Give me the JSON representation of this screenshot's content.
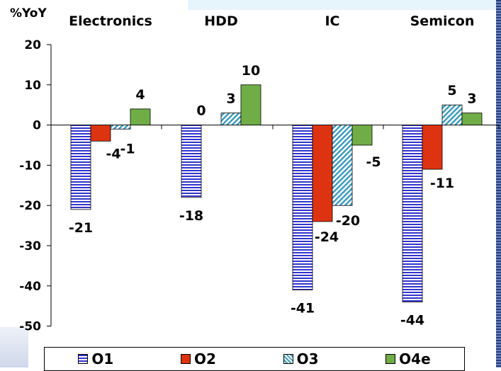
{
  "chart_data": {
    "type": "bar",
    "ylabel": "%YoY",
    "categories": [
      "Electronics",
      "HDD",
      "IC",
      "Semicon"
    ],
    "ylim": [
      -50,
      20
    ],
    "yticks": [
      20,
      10,
      0,
      -10,
      -20,
      -30,
      -40,
      -50
    ],
    "series": [
      {
        "name": "O1",
        "values": [
          -21,
          -18,
          -41,
          -44
        ],
        "pattern": "horizontal-stripes",
        "color": "#3333cc"
      },
      {
        "name": "O2",
        "values": [
          -4,
          null,
          -24,
          -11
        ],
        "pattern": "solid",
        "color": "#dd3311"
      },
      {
        "name": "O3",
        "values": [
          -1,
          3,
          -20,
          5
        ],
        "pattern": "diagonal-stripes",
        "color": "#3b9bbd"
      },
      {
        "name": "O4e",
        "values": [
          4,
          10,
          -5,
          3
        ],
        "pattern": "solid",
        "color": "#70ad47"
      }
    ],
    "data_labels": [
      [
        "-21",
        "-4",
        "-1",
        "4"
      ],
      [
        "-18",
        "0",
        "3",
        "10"
      ],
      [
        "-41",
        "-24",
        "-20",
        "-5"
      ],
      [
        "-44",
        "-11",
        "5",
        "3"
      ]
    ],
    "legend_position": "bottom"
  }
}
